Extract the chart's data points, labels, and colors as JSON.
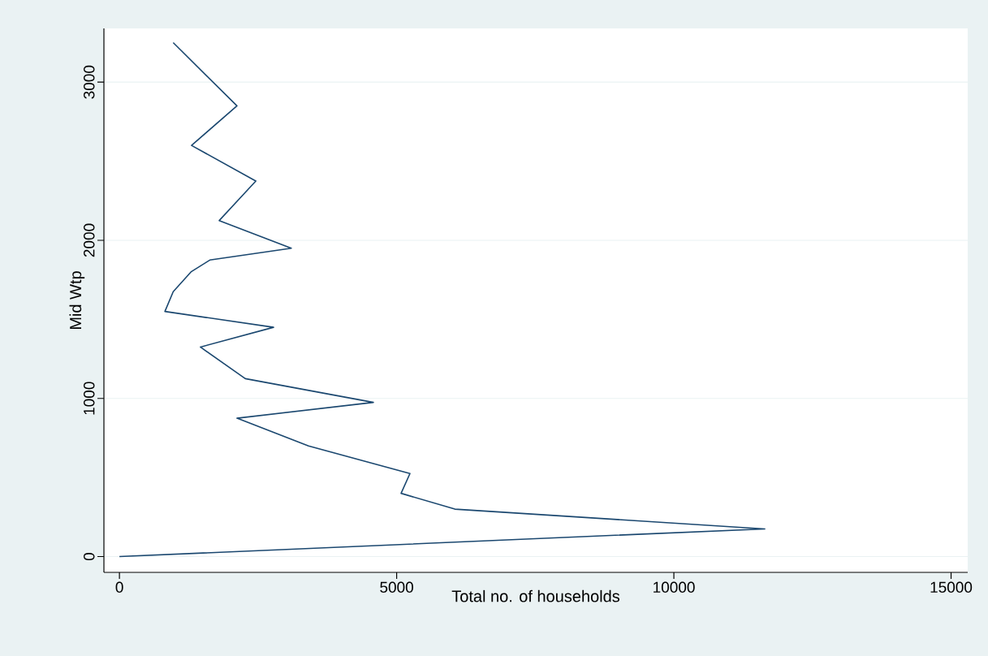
{
  "chart_data": {
    "type": "line",
    "xlabel": "Total no. of households",
    "ylabel": "Mid Wtp",
    "x": [
      0,
      11640,
      6050,
      5080,
      5240,
      3410,
      2120,
      4580,
      2270,
      1460,
      2780,
      820,
      970,
      1290,
      1630,
      3100,
      1800,
      2460,
      1300,
      2120,
      970
    ],
    "values": [
      0,
      175,
      300,
      400,
      525,
      700,
      875,
      975,
      1125,
      1325,
      1450,
      1550,
      1675,
      1800,
      1875,
      1950,
      2125,
      2375,
      2600,
      2850,
      3250
    ],
    "color": "#1a476f",
    "xlim": [
      -280,
      15300
    ],
    "ylim": [
      -100,
      3340
    ],
    "xticks": [
      0,
      5000,
      10000,
      15000
    ],
    "yticks": [
      0,
      1000,
      2000,
      3000
    ],
    "grid": "y"
  }
}
